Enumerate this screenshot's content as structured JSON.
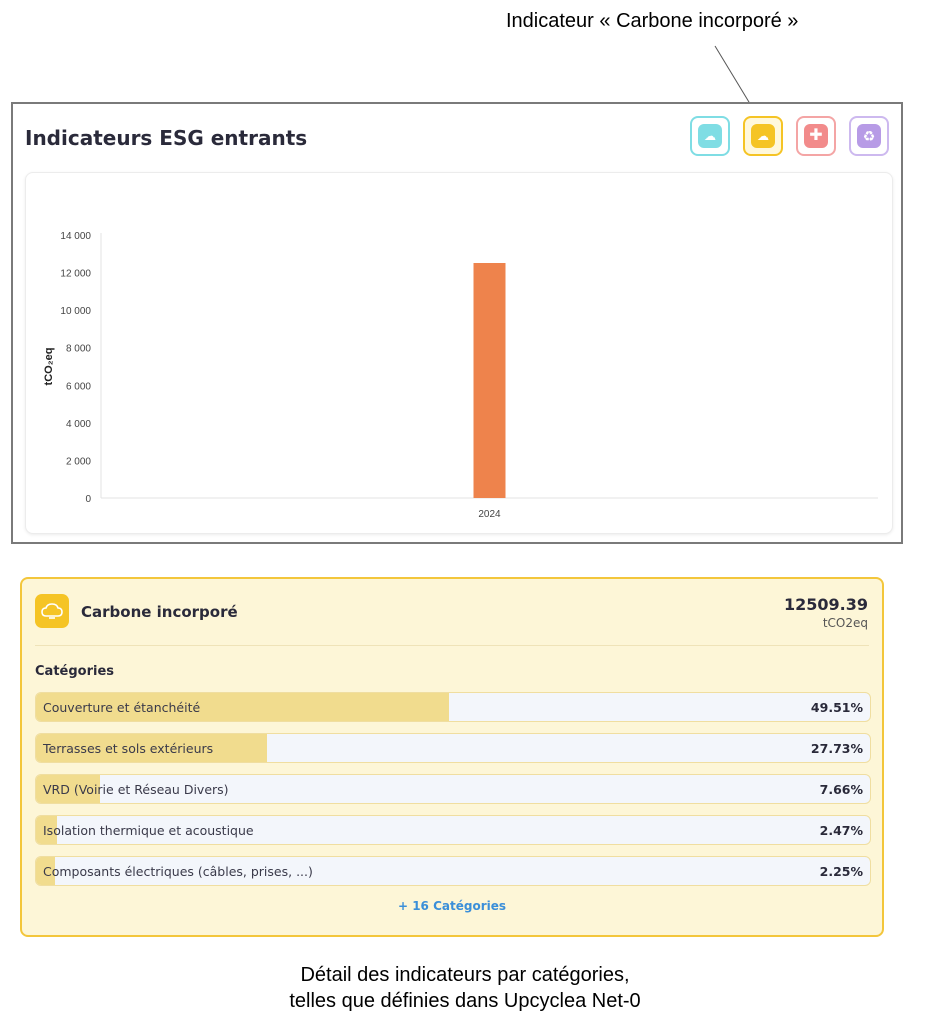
{
  "annotations": {
    "top_label": "Indicateur « Carbone incorporé »",
    "caption_line1": "Détail des indicateurs par catégories,",
    "caption_line2": "telles que définies dans Upcyclea Net-0"
  },
  "panel": {
    "title": "Indicateurs ESG entrants",
    "indicator_buttons": [
      {
        "icon": "cloud-co2-icon",
        "color": "#5fd3dd",
        "active": false
      },
      {
        "icon": "carbon-incorporated-icon",
        "color": "#f5c425",
        "active": true
      },
      {
        "icon": "health-cross-icon",
        "color": "#f28b8b",
        "active": false
      },
      {
        "icon": "recycle-icon",
        "color": "#b79be6",
        "active": false
      }
    ]
  },
  "chart_data": {
    "type": "bar",
    "categories": [
      "2024"
    ],
    "values": [
      12509.39
    ],
    "ylabel": "tCO₂eq",
    "xlabel": "",
    "ylim": [
      0,
      14000
    ],
    "yticks": [
      0,
      2000,
      4000,
      6000,
      8000,
      10000,
      12000,
      14000
    ],
    "ytick_labels": [
      "0",
      "2 000",
      "4 000",
      "6 000",
      "8 000",
      "10 000",
      "12 000",
      "14 000"
    ],
    "bar_color": "#ee834c",
    "grid": false
  },
  "detail": {
    "name": "Carbone incorporé",
    "value": "12509.39",
    "unit": "tCO2eq",
    "categories_heading": "Catégories",
    "categories": [
      {
        "label": "Couverture et étanchéité",
        "pct_text": "49.51%",
        "pct": 49.51
      },
      {
        "label": "Terrasses et sols extérieurs",
        "pct_text": "27.73%",
        "pct": 27.73
      },
      {
        "label": "VRD (Voirie et Réseau Divers)",
        "pct_text": "7.66%",
        "pct": 7.66
      },
      {
        "label": "Isolation thermique et acoustique",
        "pct_text": "2.47%",
        "pct": 2.47
      },
      {
        "label": "Composants électriques (câbles, prises, ...)",
        "pct_text": "2.25%",
        "pct": 2.25
      }
    ],
    "more_link": "+ 16 Catégories"
  },
  "colors": {
    "accent_yellow": "#f5c425",
    "detail_background": "#fdf6d7",
    "link_blue": "#3b8fd9"
  }
}
